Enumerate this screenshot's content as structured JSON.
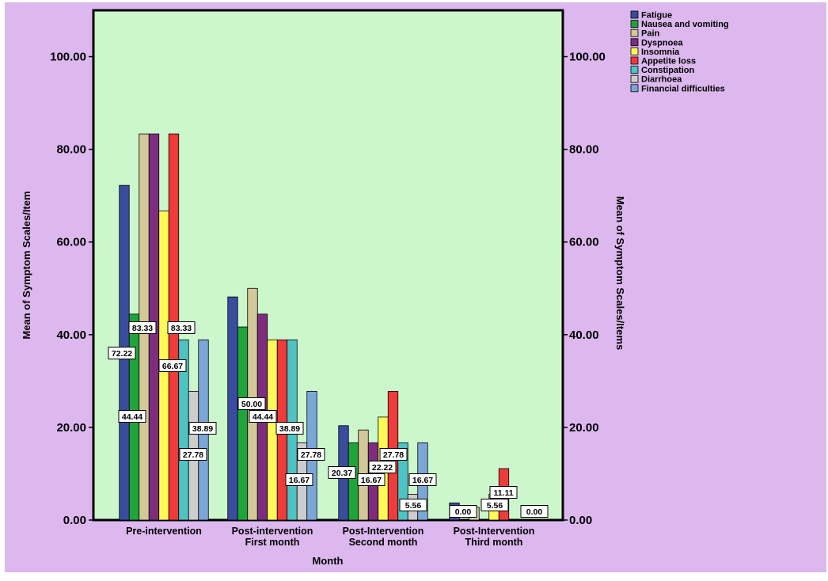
{
  "chart_data": {
    "type": "bar",
    "xlabel": "Month",
    "ylabel": "Mean of Symptom Scales/Item",
    "ylabel_right": "Mean of Symptom Scales/Items",
    "ylim": [
      0,
      110
    ],
    "yticks": [
      "0.00",
      "20.00",
      "40.00",
      "60.00",
      "80.00",
      "100.00"
    ],
    "yticks_right": [
      "0.00",
      "20.00",
      "40.00",
      "60.00",
      "80.00",
      "100.00"
    ],
    "categories": [
      [
        "Pre-intervention"
      ],
      [
        "Post-intervention",
        "First month"
      ],
      [
        "Post-Intervention",
        "Second month"
      ],
      [
        "Post-Intervention",
        "Third month"
      ]
    ],
    "legend_position": "top-right, outside plot",
    "colors": {
      "outer_background": "#dcb8ee",
      "plot_background": "#ccf7cc"
    },
    "series": [
      {
        "name": "Fatigue",
        "color": "#3a4c9e",
        "values": [
          72.22,
          48.15,
          20.37,
          3.7
        ],
        "labels": [
          "72.22",
          null,
          "20.37",
          null
        ]
      },
      {
        "name": "Nausea and vomiting",
        "color": "#1ea43a",
        "values": [
          44.44,
          41.67,
          16.67,
          0.0
        ],
        "labels": [
          "44.44",
          null,
          null,
          "0.00"
        ]
      },
      {
        "name": "Pain",
        "color": "#d2c898",
        "values": [
          83.33,
          50.0,
          19.44,
          2.78
        ],
        "labels": [
          "83.33",
          "50.00",
          null,
          null
        ]
      },
      {
        "name": "Dyspnoea",
        "color": "#7e2d7e",
        "values": [
          83.33,
          44.44,
          16.67,
          0.0
        ],
        "labels": [
          null,
          "44.44",
          "16.67",
          null
        ]
      },
      {
        "name": "Insomnia",
        "color": "#fdf956",
        "values": [
          66.67,
          38.89,
          22.22,
          5.56
        ],
        "labels": [
          "66.67",
          null,
          "22.22",
          "5.56"
        ]
      },
      {
        "name": "Appetite loss",
        "color": "#ee3b3b",
        "values": [
          83.33,
          38.89,
          27.78,
          11.11
        ],
        "labels": [
          "83.33",
          "38.89",
          "27.78",
          "11.11"
        ]
      },
      {
        "name": "Constipation",
        "color": "#4ec3c3",
        "values": [
          38.89,
          38.89,
          16.67,
          0.0
        ],
        "labels": [
          null,
          null,
          null,
          null
        ]
      },
      {
        "name": "Diarrhoea",
        "color": "#cdcdcd",
        "values": [
          27.78,
          16.67,
          5.56,
          0.0
        ],
        "labels": [
          "27.78",
          "16.67",
          "5.56",
          null
        ]
      },
      {
        "name": "Financial difficulties",
        "color": "#7ca6d8",
        "values": [
          38.89,
          27.78,
          16.67,
          0.0
        ],
        "labels": [
          "38.89",
          "27.78",
          "16.67",
          "0.00"
        ]
      }
    ]
  }
}
